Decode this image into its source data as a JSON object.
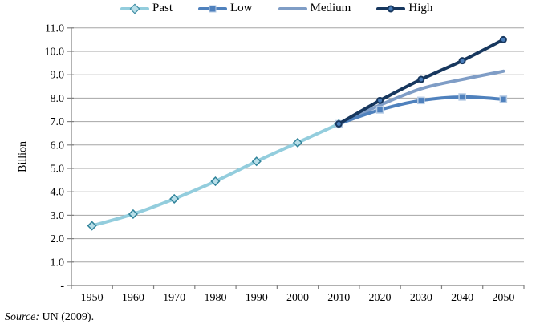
{
  "legend": {
    "items": [
      {
        "label": "Past",
        "marker": "diamond"
      },
      {
        "label": "Low",
        "marker": "square"
      },
      {
        "label": "Medium",
        "marker": "none"
      },
      {
        "label": "High",
        "marker": "dot"
      }
    ]
  },
  "source": {
    "prefix": "Source:",
    "text": " UN (2009)."
  },
  "colors": {
    "gridline": "#A6A6A6",
    "axis": "#808080",
    "text": "#000000",
    "background": "#FFFFFF"
  },
  "chart_data": {
    "type": "line",
    "title": "",
    "xlabel": "",
    "ylabel": "Billion",
    "ylim": [
      0,
      11
    ],
    "grid": "horizontal",
    "legend_position": "top",
    "x_categories": [
      1950,
      1960,
      1970,
      1980,
      1990,
      2000,
      2010,
      2020,
      2030,
      2040,
      2050
    ],
    "y_tick_labels": [
      "-",
      "1.0",
      "2.0",
      "3.0",
      "4.0",
      "5.0",
      "6.0",
      "7.0",
      "8.0",
      "9.0",
      "10.0",
      "11.0"
    ],
    "series": [
      {
        "name": "Past",
        "color": "#93CDDD",
        "marker": "diamond",
        "marker_fill": "#B7DEE8",
        "marker_stroke": "#31849B",
        "x": [
          1950,
          1960,
          1970,
          1980,
          1990,
          2000,
          2010
        ],
        "values": [
          2.55,
          3.05,
          3.7,
          4.45,
          5.3,
          6.1,
          6.9
        ]
      },
      {
        "name": "Low",
        "color": "#4F81BD",
        "marker": "square",
        "marker_fill": "#4F81BD",
        "marker_stroke": "#B9CDE5",
        "x": [
          2010,
          2020,
          2030,
          2040,
          2050
        ],
        "values": [
          6.9,
          7.5,
          7.9,
          8.05,
          7.95
        ]
      },
      {
        "name": "Medium",
        "color": "#7F9DC6",
        "marker": "none",
        "marker_fill": "",
        "marker_stroke": "",
        "x": [
          2010,
          2020,
          2030,
          2040,
          2050
        ],
        "values": [
          6.9,
          7.7,
          8.4,
          8.8,
          9.15
        ]
      },
      {
        "name": "High",
        "color": "#17375E",
        "marker": "dot",
        "marker_fill": "#4A7EBB",
        "marker_stroke": "#17375E",
        "x": [
          2010,
          2020,
          2030,
          2040,
          2050
        ],
        "values": [
          6.9,
          7.9,
          8.8,
          9.6,
          10.5
        ]
      }
    ]
  }
}
